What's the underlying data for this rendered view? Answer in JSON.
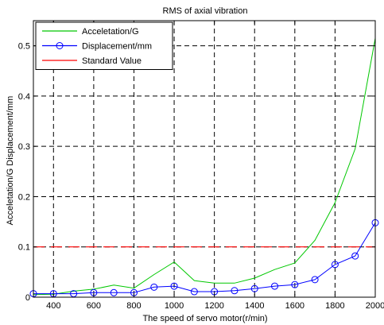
{
  "chart_data": {
    "type": "line",
    "title": "RMS of axial vibration",
    "xlabel": "The speed of servo motor(r/min)",
    "ylabel": "Acceletation/G  Displacement/mm",
    "xlim": [
      300,
      2000
    ],
    "ylim": [
      0,
      0.55
    ],
    "xticks": [
      400,
      600,
      800,
      1000,
      1200,
      1400,
      1600,
      1800,
      2000
    ],
    "yticks": [
      0,
      0.1,
      0.2,
      0.3,
      0.4,
      0.5
    ],
    "grid": true,
    "grid_style": "dashed",
    "legend_position": "top-left",
    "x": [
      300,
      400,
      500,
      600,
      700,
      800,
      900,
      1000,
      1100,
      1200,
      1300,
      1400,
      1500,
      1600,
      1700,
      1800,
      1900,
      2000
    ],
    "series": [
      {
        "name": "Acceletation/G",
        "color": "#00c800",
        "marker": "none",
        "values": [
          0.005,
          0.006,
          0.012,
          0.016,
          0.024,
          0.018,
          0.045,
          0.07,
          0.033,
          0.028,
          0.028,
          0.038,
          0.055,
          0.068,
          0.113,
          0.188,
          0.295,
          0.515
        ]
      },
      {
        "name": "Displacement/mm",
        "color": "#0000ff",
        "marker": "circle",
        "values": [
          0.007,
          0.007,
          0.007,
          0.009,
          0.009,
          0.009,
          0.02,
          0.022,
          0.011,
          0.011,
          0.013,
          0.017,
          0.022,
          0.025,
          0.035,
          0.065,
          0.082,
          0.148
        ]
      },
      {
        "name": "Standard Value",
        "color": "#ff0000",
        "marker": "none",
        "style": "dashed",
        "values": [
          0.1,
          0.1,
          0.1,
          0.1,
          0.1,
          0.1,
          0.1,
          0.1,
          0.1,
          0.1,
          0.1,
          0.1,
          0.1,
          0.1,
          0.1,
          0.1,
          0.1,
          0.1
        ]
      }
    ]
  }
}
